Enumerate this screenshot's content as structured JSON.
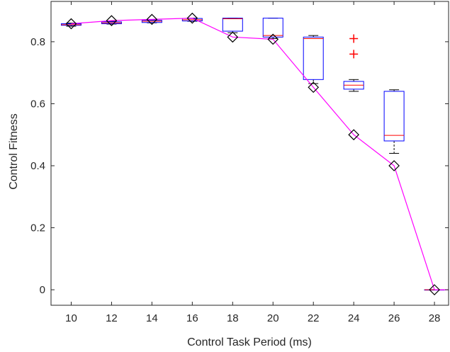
{
  "chart_data": {
    "type": "box",
    "xlabel": "Control Task Period (ms)",
    "ylabel": "Control Fitness",
    "x_ticks": [
      "10",
      "12",
      "14",
      "16",
      "18",
      "20",
      "22",
      "24",
      "26",
      "28"
    ],
    "y_ticks": [
      "0",
      "0.2",
      "0.4",
      "0.6",
      "0.8"
    ],
    "xlim": [
      9,
      28.7
    ],
    "ylim": [
      -0.05,
      0.93
    ],
    "grid": false,
    "boxes": [
      {
        "x": 10,
        "whisker_low": 0.85,
        "q1": 0.853,
        "median": 0.855,
        "q3": 0.858,
        "whisker_high": 0.86,
        "outliers": []
      },
      {
        "x": 12,
        "whisker_low": 0.857,
        "q1": 0.858,
        "median": 0.861,
        "q3": 0.864,
        "whisker_high": 0.866,
        "outliers": []
      },
      {
        "x": 14,
        "whisker_low": 0.861,
        "q1": 0.862,
        "median": 0.866,
        "q3": 0.869,
        "whisker_high": 0.871,
        "outliers": []
      },
      {
        "x": 16,
        "whisker_low": 0.866,
        "q1": 0.867,
        "median": 0.871,
        "q3": 0.875,
        "whisker_high": 0.876,
        "outliers": []
      },
      {
        "x": 18,
        "whisker_low": 0.829,
        "q1": 0.834,
        "median": 0.874,
        "q3": 0.876,
        "whisker_high": 0.876,
        "outliers": []
      },
      {
        "x": 20,
        "whisker_low": 0.81,
        "q1": 0.815,
        "median": 0.82,
        "q3": 0.876,
        "whisker_high": 0.876,
        "outliers": []
      },
      {
        "x": 22,
        "whisker_low": 0.665,
        "q1": 0.678,
        "median": 0.81,
        "q3": 0.815,
        "whisker_high": 0.82,
        "outliers": []
      },
      {
        "x": 24,
        "whisker_low": 0.64,
        "q1": 0.647,
        "median": 0.66,
        "q3": 0.672,
        "whisker_high": 0.678,
        "outliers": [
          0.76,
          0.81
        ]
      },
      {
        "x": 26,
        "whisker_low": 0.44,
        "q1": 0.48,
        "median": 0.498,
        "q3": 0.64,
        "whisker_high": 0.645,
        "outliers": []
      },
      {
        "x": 28,
        "whisker_low": 0,
        "q1": 0,
        "median": 0,
        "q3": 0,
        "whisker_high": 0,
        "outliers": []
      }
    ],
    "line_series": {
      "x": [
        10,
        12,
        14,
        16,
        18,
        20,
        22,
        24,
        26,
        28
      ],
      "values": [
        0.858,
        0.868,
        0.872,
        0.876,
        0.815,
        0.808,
        0.653,
        0.5,
        0.4,
        0
      ],
      "marker": "diamond"
    },
    "colors": {
      "box": "#0000ff",
      "median": "#ff0000",
      "whisker": "#000000",
      "outlier": "#ff0000",
      "line": "#ff00ff",
      "marker": "#000000",
      "axis": "#262626"
    }
  }
}
